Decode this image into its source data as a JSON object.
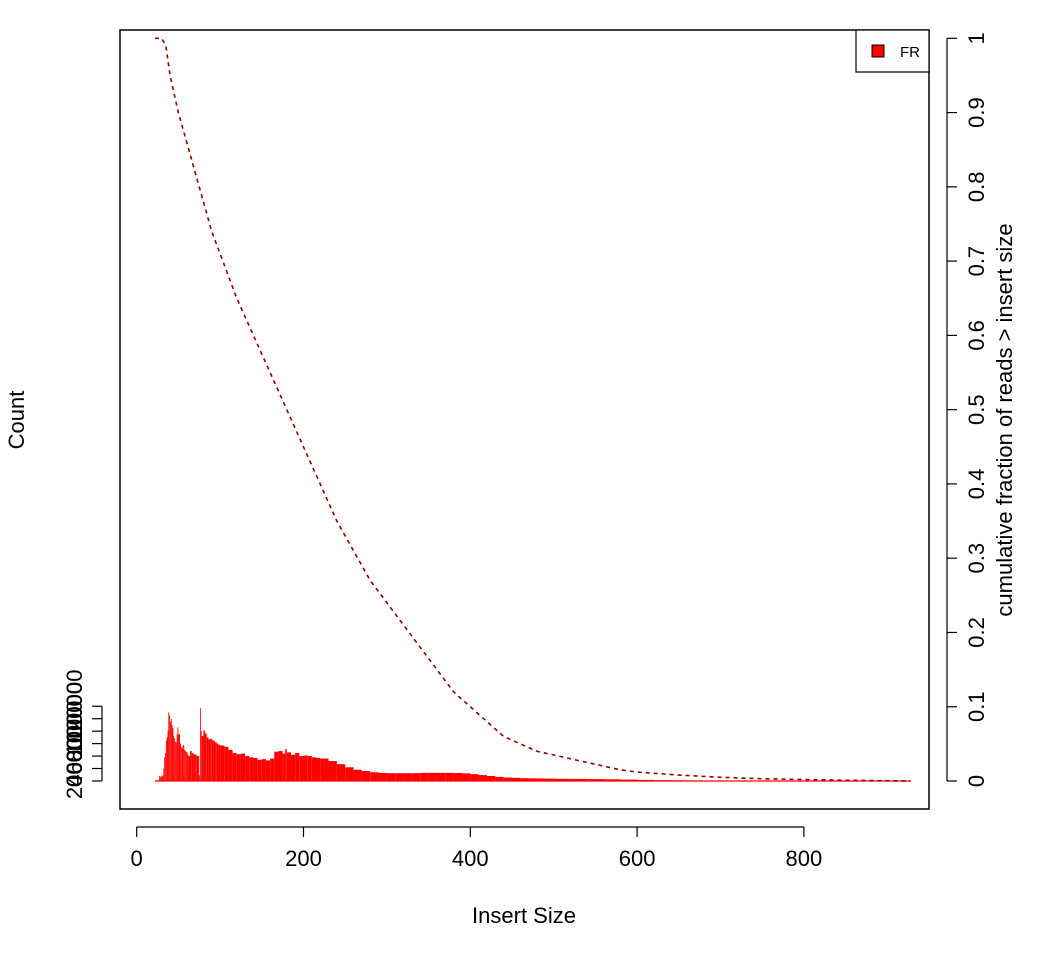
{
  "chart_data": {
    "type": "bar",
    "title": "",
    "xlabel": "Insert Size",
    "ylabel": "Count",
    "ylabel_right": "cumulative fraction of reads > insert size",
    "xlim": [
      -20,
      950
    ],
    "ylim": [
      -45000,
      1206000
    ],
    "ylim_right": [
      -0.0377,
      1.0112
    ],
    "x_ticks": [
      0,
      200,
      400,
      600,
      800
    ],
    "x_tick_labels": [
      "0",
      "200",
      "400",
      "600",
      "800"
    ],
    "y_ticks": [
      0,
      20000,
      40000,
      60000,
      80000,
      100000,
      120000
    ],
    "y_tick_labels": [
      "0",
      "20000",
      "40000",
      "60000",
      "80000",
      "100000",
      "120000"
    ],
    "y_right_ticks": [
      0,
      0.1,
      0.2,
      0.3,
      0.4,
      0.5,
      0.6,
      0.7,
      0.8,
      0.9,
      1
    ],
    "y_right_tick_labels": [
      "0",
      "0.1",
      "0.2",
      "0.3",
      "0.4",
      "0.5",
      "0.6",
      "0.7",
      "0.8",
      "0.9",
      "1"
    ],
    "grid": false,
    "legend": {
      "position": "top-right",
      "entries": [
        "FR"
      ]
    },
    "colors": {
      "histogram": "#ff0000",
      "cumulative": "#8b0000"
    },
    "series": [
      {
        "name": "FR",
        "kind": "histogram",
        "x": [
          22,
          24,
          26,
          27,
          28,
          29,
          30,
          31,
          32,
          33,
          34,
          35,
          36,
          37,
          38,
          39,
          40,
          41,
          42,
          43,
          44,
          45,
          46,
          47,
          48,
          49,
          50,
          52,
          53,
          54,
          55,
          56,
          57,
          58,
          59,
          60,
          61,
          62,
          64,
          66,
          68,
          70,
          72,
          74,
          75,
          76,
          77,
          78,
          80,
          82,
          84,
          86,
          88,
          90,
          92,
          94,
          96,
          98,
          100,
          105,
          110,
          115,
          120,
          125,
          130,
          135,
          140,
          145,
          150,
          155,
          160,
          165,
          170,
          175,
          178,
          180,
          185,
          190,
          195,
          200,
          205,
          210,
          215,
          220,
          230,
          240,
          250,
          260,
          270,
          280,
          290,
          300,
          310,
          320,
          330,
          340,
          350,
          360,
          370,
          380,
          390,
          400,
          410,
          420,
          430,
          440,
          450,
          460,
          470,
          480,
          490,
          500,
          520,
          540,
          560,
          580,
          600,
          620,
          640,
          660,
          680,
          700,
          720,
          740,
          760,
          780,
          800,
          830,
          860,
          900,
          928
        ],
        "values": [
          0,
          0,
          2000,
          8000,
          6000,
          8500,
          7000,
          9000,
          20000,
          38000,
          45000,
          65000,
          70000,
          80000,
          110000,
          105000,
          95000,
          100000,
          90000,
          85000,
          72000,
          68000,
          63000,
          62000,
          75000,
          86000,
          75000,
          60000,
          55000,
          52000,
          57000,
          58000,
          50000,
          48000,
          47000,
          46000,
          42000,
          40000,
          48000,
          45000,
          43000,
          42000,
          40000,
          40000,
          9000,
          117000,
          80000,
          72000,
          81000,
          76000,
          70000,
          67000,
          68000,
          66000,
          64000,
          62000,
          60000,
          58000,
          57000,
          55000,
          50000,
          45000,
          43000,
          44000,
          40000,
          38000,
          37000,
          34000,
          35000,
          33000,
          36000,
          47000,
          48000,
          44000,
          51000,
          46000,
          42000,
          45000,
          40000,
          41000,
          40000,
          38000,
          37000,
          36000,
          32000,
          27000,
          22000,
          18000,
          16000,
          14000,
          13000,
          12500,
          12500,
          12500,
          12500,
          13000,
          13000,
          13000,
          13000,
          12800,
          12200,
          11000,
          9500,
          8000,
          6500,
          5500,
          5000,
          4500,
          4200,
          4000,
          3800,
          3500,
          3300,
          3000,
          2700,
          2200,
          1700,
          1300,
          1000,
          800,
          600,
          500,
          400,
          300,
          250,
          200,
          150,
          120,
          100,
          80,
          50
        ]
      },
      {
        "name": "",
        "kind": "cumulative",
        "axis": "right",
        "x": [
          22,
          30,
          35,
          40,
          50,
          60,
          70,
          80,
          90,
          100,
          110,
          120,
          140,
          160,
          180,
          200,
          220,
          240,
          260,
          280,
          300,
          320,
          340,
          360,
          380,
          400,
          420,
          440,
          460,
          480,
          500,
          520,
          540,
          560,
          580,
          600,
          650,
          700,
          750,
          800,
          850,
          928
        ],
        "values": [
          1.0,
          1.0,
          0.99,
          0.95,
          0.9,
          0.86,
          0.82,
          0.78,
          0.74,
          0.71,
          0.68,
          0.65,
          0.6,
          0.55,
          0.5,
          0.45,
          0.4,
          0.35,
          0.31,
          0.27,
          0.24,
          0.21,
          0.18,
          0.15,
          0.12,
          0.1,
          0.08,
          0.06,
          0.05,
          0.04,
          0.035,
          0.03,
          0.025,
          0.02,
          0.015,
          0.012,
          0.008,
          0.005,
          0.003,
          0.002,
          0.001,
          0.0
        ]
      }
    ]
  }
}
